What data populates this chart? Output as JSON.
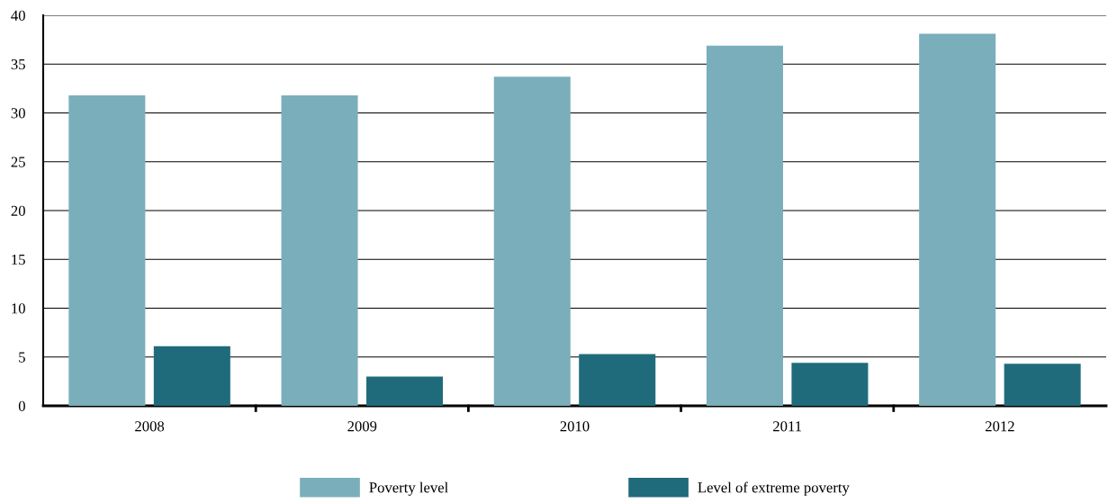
{
  "chart_data": {
    "type": "bar",
    "categories": [
      "2008",
      "2009",
      "2010",
      "2011",
      "2012"
    ],
    "series": [
      {
        "name": "Poverty level",
        "color": "#7aaebb",
        "values": [
          31.8,
          31.8,
          33.7,
          36.9,
          38.1
        ]
      },
      {
        "name": "Level of extreme poverty",
        "color": "#1f6b7c",
        "values": [
          6.1,
          3.0,
          5.3,
          4.4,
          4.3
        ]
      }
    ],
    "ylim": [
      0,
      40
    ],
    "yticks": [
      0,
      5,
      10,
      15,
      20,
      25,
      30,
      35,
      40
    ],
    "grid": "y",
    "legend": "bottom"
  }
}
